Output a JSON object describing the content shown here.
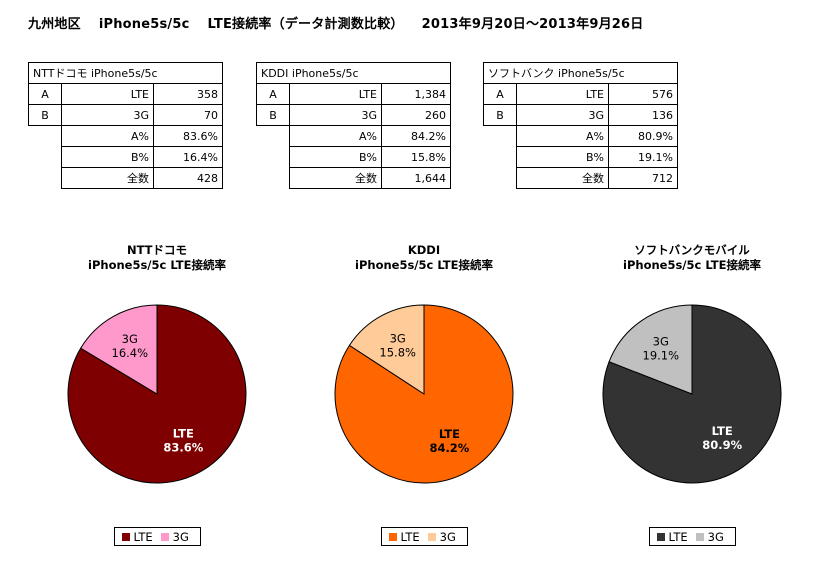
{
  "header": {
    "region": "九州地区",
    "device": "iPhone5s/5c",
    "metric": "LTE接続率（データ計測数比較）",
    "period": "2013年9月20日～2013年9月26日"
  },
  "tables": [
    {
      "title": "NTTドコモ iPhone5s/5c",
      "rows": [
        {
          "label": "A",
          "key": "LTE",
          "value": "358"
        },
        {
          "label": "B",
          "key": "3G",
          "value": "70"
        },
        {
          "label": "",
          "key": "A%",
          "value": "83.6%"
        },
        {
          "label": "",
          "key": "B%",
          "value": "16.4%"
        },
        {
          "label": "",
          "key": "全数",
          "value": "428"
        }
      ]
    },
    {
      "title": "KDDI iPhone5s/5c",
      "rows": [
        {
          "label": "A",
          "key": "LTE",
          "value": "1,384"
        },
        {
          "label": "B",
          "key": "3G",
          "value": "260"
        },
        {
          "label": "",
          "key": "A%",
          "value": "84.2%"
        },
        {
          "label": "",
          "key": "B%",
          "value": "15.8%"
        },
        {
          "label": "",
          "key": "全数",
          "value": "1,644"
        }
      ]
    },
    {
      "title": "ソフトバンク iPhone5s/5c",
      "rows": [
        {
          "label": "A",
          "key": "LTE",
          "value": "576"
        },
        {
          "label": "B",
          "key": "3G",
          "value": "136"
        },
        {
          "label": "",
          "key": "A%",
          "value": "80.9%"
        },
        {
          "label": "",
          "key": "B%",
          "value": "19.1%"
        },
        {
          "label": "",
          "key": "全数",
          "value": "712"
        }
      ]
    }
  ],
  "chart_data": [
    {
      "type": "pie",
      "title": "NTTドコモ",
      "subtitle": "iPhone5s/5c LTE接続率",
      "slices": [
        {
          "name": "LTE",
          "value": 83.6,
          "label": "83.6%",
          "color": "#7f0000"
        },
        {
          "name": "3G",
          "value": 16.4,
          "label": "16.4%",
          "color": "#ff99cc"
        }
      ],
      "legend": "bottom"
    },
    {
      "type": "pie",
      "title": "KDDI",
      "subtitle": "iPhone5s/5c LTE接続率",
      "slices": [
        {
          "name": "LTE",
          "value": 84.2,
          "label": "84.2%",
          "color": "#ff6600"
        },
        {
          "name": "3G",
          "value": 15.8,
          "label": "15.8%",
          "color": "#ffcc99"
        }
      ],
      "legend": "bottom"
    },
    {
      "type": "pie",
      "title": "ソフトバンクモバイル",
      "subtitle": "iPhone5s/5c LTE接続率",
      "slices": [
        {
          "name": "LTE",
          "value": 80.9,
          "label": "80.9%",
          "color": "#333333"
        },
        {
          "name": "3G",
          "value": 19.1,
          "label": "19.1%",
          "color": "#c0c0c0"
        }
      ],
      "legend": "bottom"
    }
  ]
}
